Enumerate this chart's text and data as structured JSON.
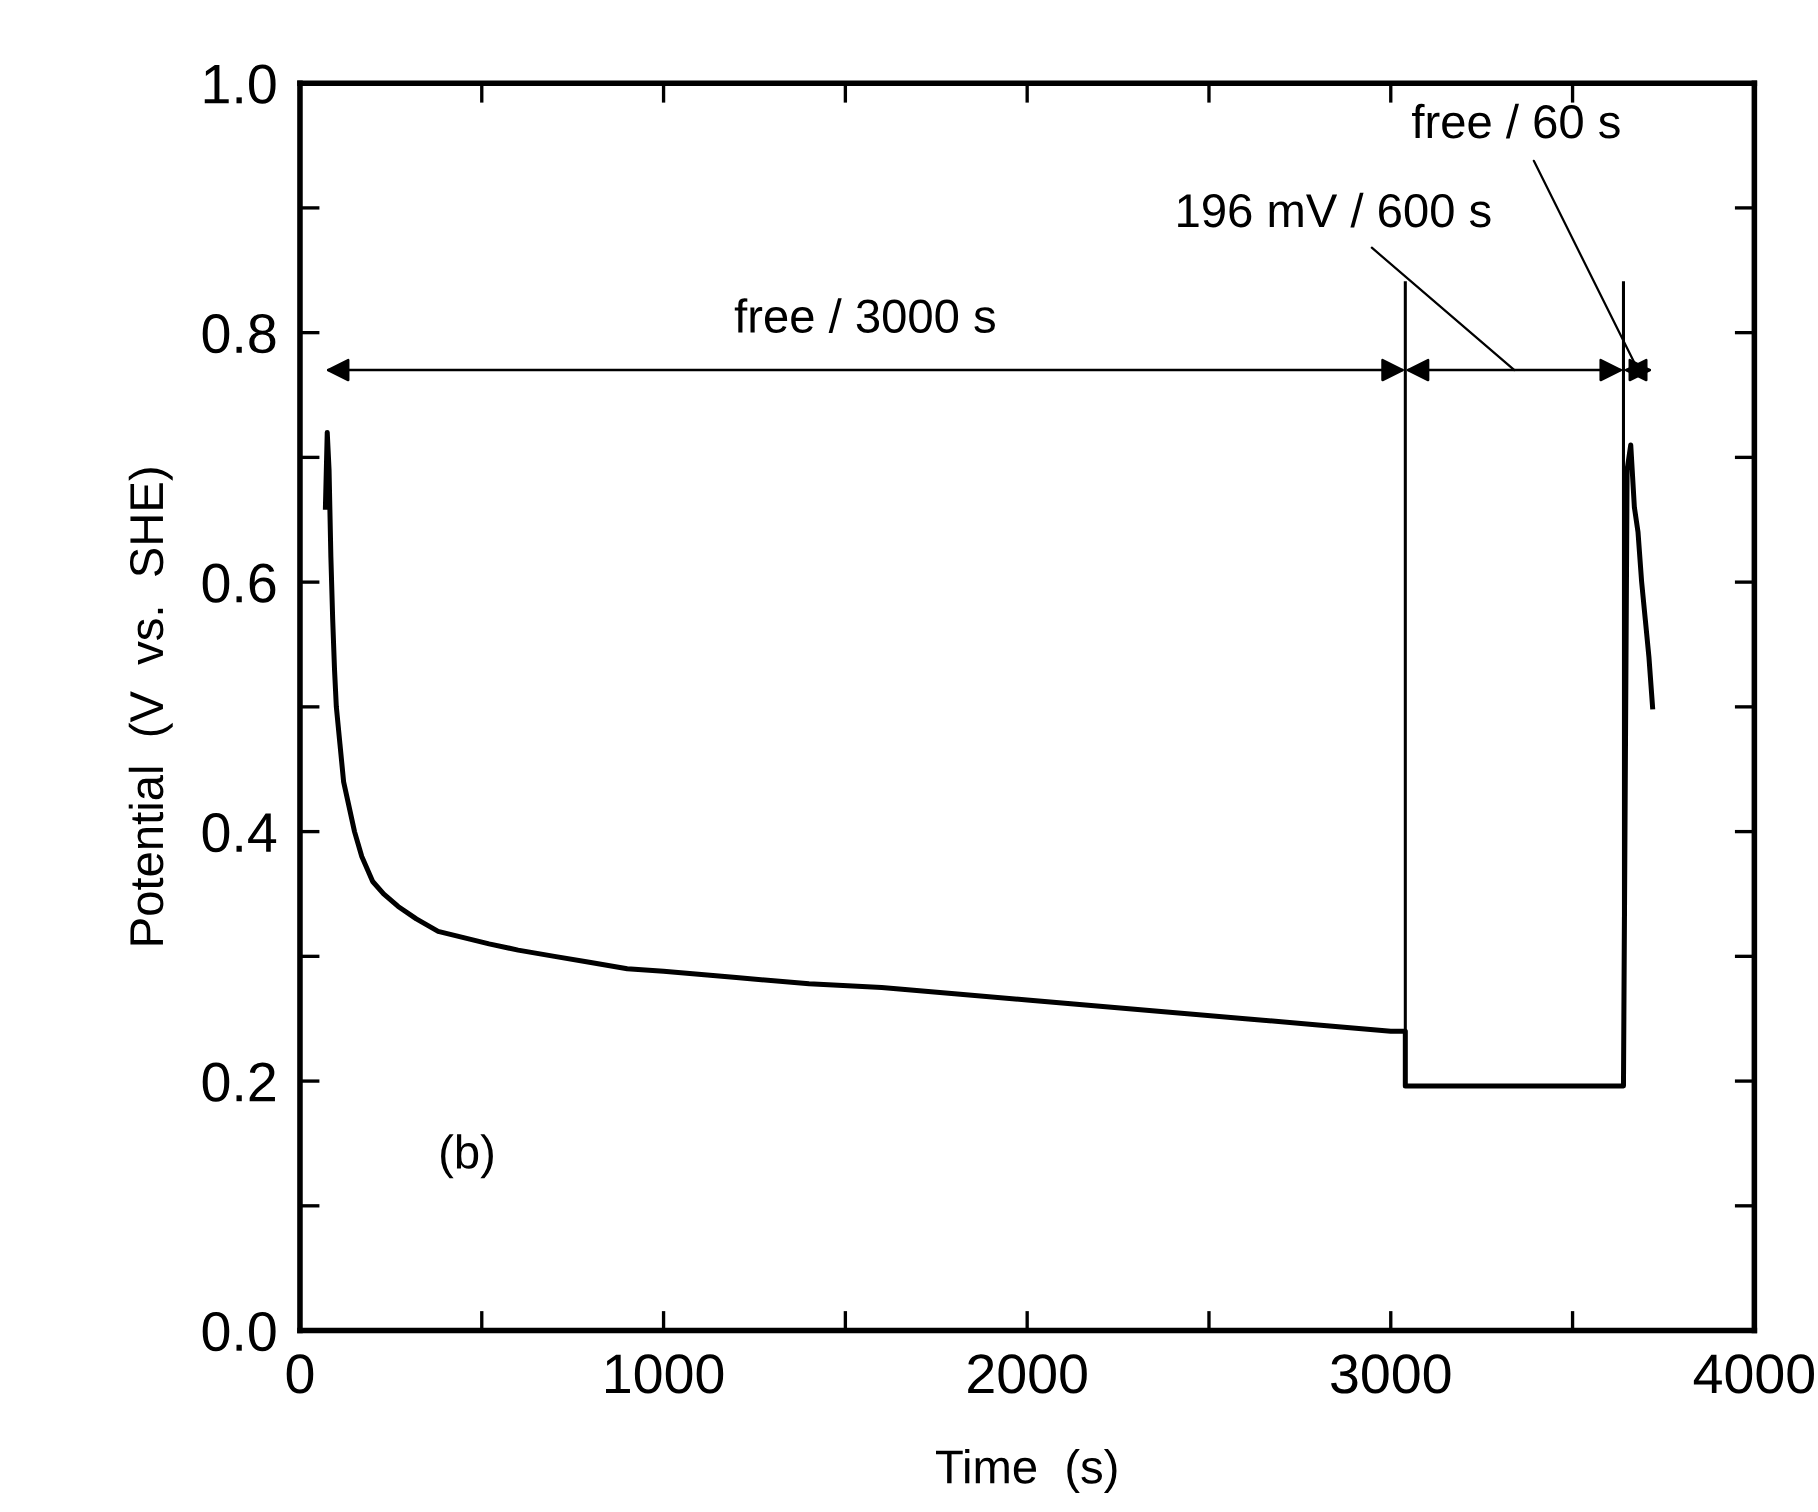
{
  "chart_data": {
    "type": "line",
    "xlabel": "Time  (s)",
    "ylabel": "Potential  (V  vs.  SHE)",
    "series": [
      {
        "color": "#000000",
        "x": [
          70,
          75,
          80,
          85,
          90,
          95,
          100,
          110,
          120,
          135,
          150,
          170,
          200,
          230,
          270,
          320,
          380,
          450,
          520,
          600,
          700,
          800,
          900,
          1000,
          1200,
          1400,
          1600,
          1800,
          2000,
          2200,
          2400,
          2600,
          2800,
          3000,
          3040,
          3040,
          3300,
          3640,
          3650,
          3660,
          3670,
          3680,
          3690,
          3700,
          3710,
          3720
        ],
        "values": [
          0.66,
          0.72,
          0.69,
          0.62,
          0.57,
          0.53,
          0.5,
          0.47,
          0.44,
          0.42,
          0.4,
          0.38,
          0.36,
          0.35,
          0.34,
          0.33,
          0.32,
          0.315,
          0.31,
          0.305,
          0.3,
          0.295,
          0.29,
          0.288,
          0.283,
          0.278,
          0.275,
          0.27,
          0.265,
          0.26,
          0.255,
          0.25,
          0.245,
          0.24,
          0.24,
          0.196,
          0.196,
          0.196,
          0.69,
          0.71,
          0.66,
          0.64,
          0.6,
          0.57,
          0.54,
          0.5
        ]
      }
    ],
    "xlim": [
      0,
      4000
    ],
    "ylim": [
      0,
      1
    ],
    "xticks": [
      0,
      {
        "value": 500,
        "label": null
      },
      1000,
      {
        "value": 1500,
        "label": null
      },
      2000,
      {
        "value": 2500,
        "label": null
      },
      3000,
      {
        "value": 3500,
        "label": null
      },
      4000
    ],
    "yticks": [
      {
        "value": 0,
        "label": "0.0"
      },
      {
        "value": 0.1,
        "label": null
      },
      0.2,
      {
        "value": 0.3,
        "label": null
      },
      0.4,
      {
        "value": 0.5,
        "label": null
      },
      0.6,
      {
        "value": 0.7,
        "label": null
      },
      0.8,
      {
        "value": 0.9,
        "label": null
      },
      {
        "value": 1,
        "label": "1.0"
      }
    ],
    "ref_lines": [
      {
        "axis": "x",
        "value": 3040,
        "label": null,
        "color": "#000000"
      },
      {
        "axis": "x",
        "value": 3640,
        "label": null,
        "color": "#000000"
      }
    ],
    "annotations": [
      "free / 3000 s",
      "196 mV / 600 s",
      "free / 60 s",
      "(b)"
    ],
    "grid": false,
    "legend": false
  }
}
